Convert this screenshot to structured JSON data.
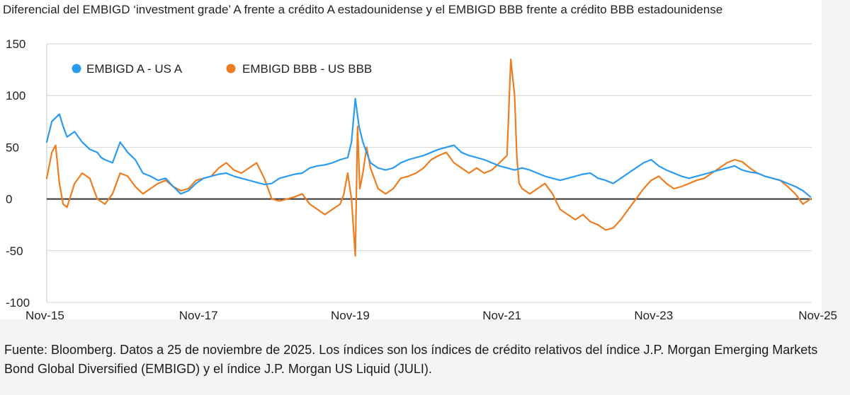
{
  "chart_data": {
    "type": "line",
    "title": "Diferencial del EMBIGD ‘investment grade’ A frente a crédito A estadounidense y el EMBIGD BBB frente a crédito BBB estadounidense",
    "xlabel": "",
    "ylabel": "",
    "ylim": [
      -100,
      150
    ],
    "yticks": [
      150,
      100,
      50,
      0,
      -50,
      -100
    ],
    "xlim": [
      2015.833,
      2025.917
    ],
    "xticks": [
      {
        "label": "Nov-15",
        "value": 2015.833
      },
      {
        "label": "Nov-17",
        "value": 2017.833
      },
      {
        "label": "Nov-19",
        "value": 2019.833
      },
      {
        "label": "Nov-21",
        "value": 2021.833
      },
      {
        "label": "Nov-23",
        "value": 2023.833
      },
      {
        "label": "Nov-25",
        "value": 2025.833
      }
    ],
    "grid": true,
    "legend": "top-left",
    "series": [
      {
        "name": "EMBIGD A - US A",
        "color": "#2b9bf0",
        "x": [
          2015.833,
          2015.9,
          2016.0,
          2016.05,
          2016.1,
          2016.2,
          2016.3,
          2016.4,
          2016.5,
          2016.55,
          2016.6,
          2016.7,
          2016.8,
          2016.9,
          2017.0,
          2017.1,
          2017.2,
          2017.3,
          2017.4,
          2017.5,
          2017.6,
          2017.7,
          2017.8,
          2017.9,
          2018.0,
          2018.1,
          2018.2,
          2018.3,
          2018.4,
          2018.5,
          2018.6,
          2018.7,
          2018.8,
          2018.9,
          2019.0,
          2019.1,
          2019.2,
          2019.3,
          2019.4,
          2019.5,
          2019.6,
          2019.7,
          2019.8,
          2019.85,
          2019.9,
          2019.95,
          2020.0,
          2020.05,
          2020.1,
          2020.2,
          2020.3,
          2020.4,
          2020.5,
          2020.6,
          2020.7,
          2020.8,
          2020.9,
          2021.0,
          2021.1,
          2021.2,
          2021.3,
          2021.4,
          2021.5,
          2021.6,
          2021.7,
          2021.8,
          2021.9,
          2022.0,
          2022.1,
          2022.2,
          2022.3,
          2022.4,
          2022.5,
          2022.6,
          2022.7,
          2022.8,
          2022.9,
          2023.0,
          2023.1,
          2023.2,
          2023.3,
          2023.4,
          2023.5,
          2023.6,
          2023.7,
          2023.8,
          2023.9,
          2024.0,
          2024.1,
          2024.2,
          2024.3,
          2024.4,
          2024.5,
          2024.6,
          2024.7,
          2024.8,
          2024.9,
          2025.0,
          2025.1,
          2025.2,
          2025.3,
          2025.4,
          2025.5,
          2025.6,
          2025.7,
          2025.8,
          2025.9
        ],
        "values": [
          55,
          75,
          82,
          70,
          60,
          65,
          55,
          48,
          45,
          40,
          38,
          35,
          55,
          45,
          38,
          25,
          22,
          18,
          20,
          12,
          5,
          8,
          15,
          20,
          22,
          24,
          25,
          22,
          20,
          18,
          16,
          14,
          15,
          20,
          22,
          24,
          25,
          30,
          32,
          33,
          35,
          38,
          40,
          55,
          97,
          70,
          55,
          45,
          35,
          30,
          28,
          30,
          35,
          38,
          40,
          42,
          45,
          48,
          50,
          52,
          45,
          42,
          40,
          38,
          35,
          32,
          30,
          28,
          30,
          28,
          25,
          22,
          20,
          18,
          20,
          22,
          24,
          25,
          20,
          18,
          15,
          20,
          25,
          30,
          35,
          38,
          32,
          28,
          25,
          22,
          20,
          22,
          24,
          26,
          28,
          30,
          32,
          28,
          26,
          25,
          22,
          20,
          18,
          15,
          12,
          8,
          2
        ]
      },
      {
        "name": "EMBIGD BBB - US BBB",
        "color": "#ee7d1f",
        "x": [
          2015.833,
          2015.9,
          2015.95,
          2016.0,
          2016.05,
          2016.1,
          2016.2,
          2016.3,
          2016.4,
          2016.5,
          2016.6,
          2016.7,
          2016.8,
          2016.9,
          2017.0,
          2017.1,
          2017.2,
          2017.3,
          2017.4,
          2017.5,
          2017.6,
          2017.7,
          2017.8,
          2017.9,
          2018.0,
          2018.1,
          2018.2,
          2018.3,
          2018.4,
          2018.5,
          2018.6,
          2018.7,
          2018.8,
          2018.9,
          2019.0,
          2019.1,
          2019.2,
          2019.3,
          2019.4,
          2019.5,
          2019.6,
          2019.7,
          2019.75,
          2019.8,
          2019.85,
          2019.9,
          2019.93,
          2019.96,
          2020.0,
          2020.05,
          2020.1,
          2020.2,
          2020.3,
          2020.4,
          2020.5,
          2020.6,
          2020.7,
          2020.8,
          2020.9,
          2021.0,
          2021.1,
          2021.2,
          2021.3,
          2021.4,
          2021.5,
          2021.6,
          2021.7,
          2021.8,
          2021.9,
          2021.95,
          2022.0,
          2022.03,
          2022.06,
          2022.1,
          2022.2,
          2022.3,
          2022.4,
          2022.5,
          2022.6,
          2022.7,
          2022.8,
          2022.9,
          2023.0,
          2023.1,
          2023.2,
          2023.3,
          2023.4,
          2023.5,
          2023.6,
          2023.7,
          2023.8,
          2023.9,
          2024.0,
          2024.1,
          2024.2,
          2024.3,
          2024.4,
          2024.5,
          2024.6,
          2024.7,
          2024.8,
          2024.9,
          2025.0,
          2025.1,
          2025.2,
          2025.3,
          2025.4,
          2025.5,
          2025.6,
          2025.7,
          2025.8,
          2025.9
        ],
        "values": [
          20,
          45,
          52,
          15,
          -5,
          -8,
          15,
          25,
          20,
          0,
          -5,
          5,
          25,
          22,
          12,
          5,
          10,
          15,
          18,
          12,
          8,
          10,
          18,
          20,
          22,
          30,
          35,
          28,
          25,
          30,
          35,
          20,
          0,
          -2,
          0,
          2,
          5,
          -5,
          -10,
          -15,
          -10,
          -5,
          5,
          25,
          0,
          -55,
          70,
          10,
          25,
          50,
          30,
          10,
          5,
          10,
          20,
          22,
          25,
          30,
          38,
          42,
          45,
          35,
          30,
          25,
          30,
          25,
          28,
          35,
          42,
          135,
          100,
          40,
          15,
          10,
          5,
          10,
          15,
          5,
          -10,
          -15,
          -20,
          -15,
          -22,
          -25,
          -30,
          -28,
          -20,
          -10,
          0,
          10,
          18,
          22,
          15,
          10,
          12,
          15,
          18,
          20,
          25,
          30,
          35,
          38,
          36,
          30,
          25,
          22,
          20,
          18,
          12,
          5,
          -5,
          0
        ]
      }
    ]
  },
  "caption": "Fuente: Bloomberg. Datos a 25 de noviembre de 2025. Los índices son los índices de crédito relativos del índice J.P. Morgan Emerging Markets Bond Global Diversified (EMBIGD) y el índice J.P. Morgan US Liquid (JULI)."
}
